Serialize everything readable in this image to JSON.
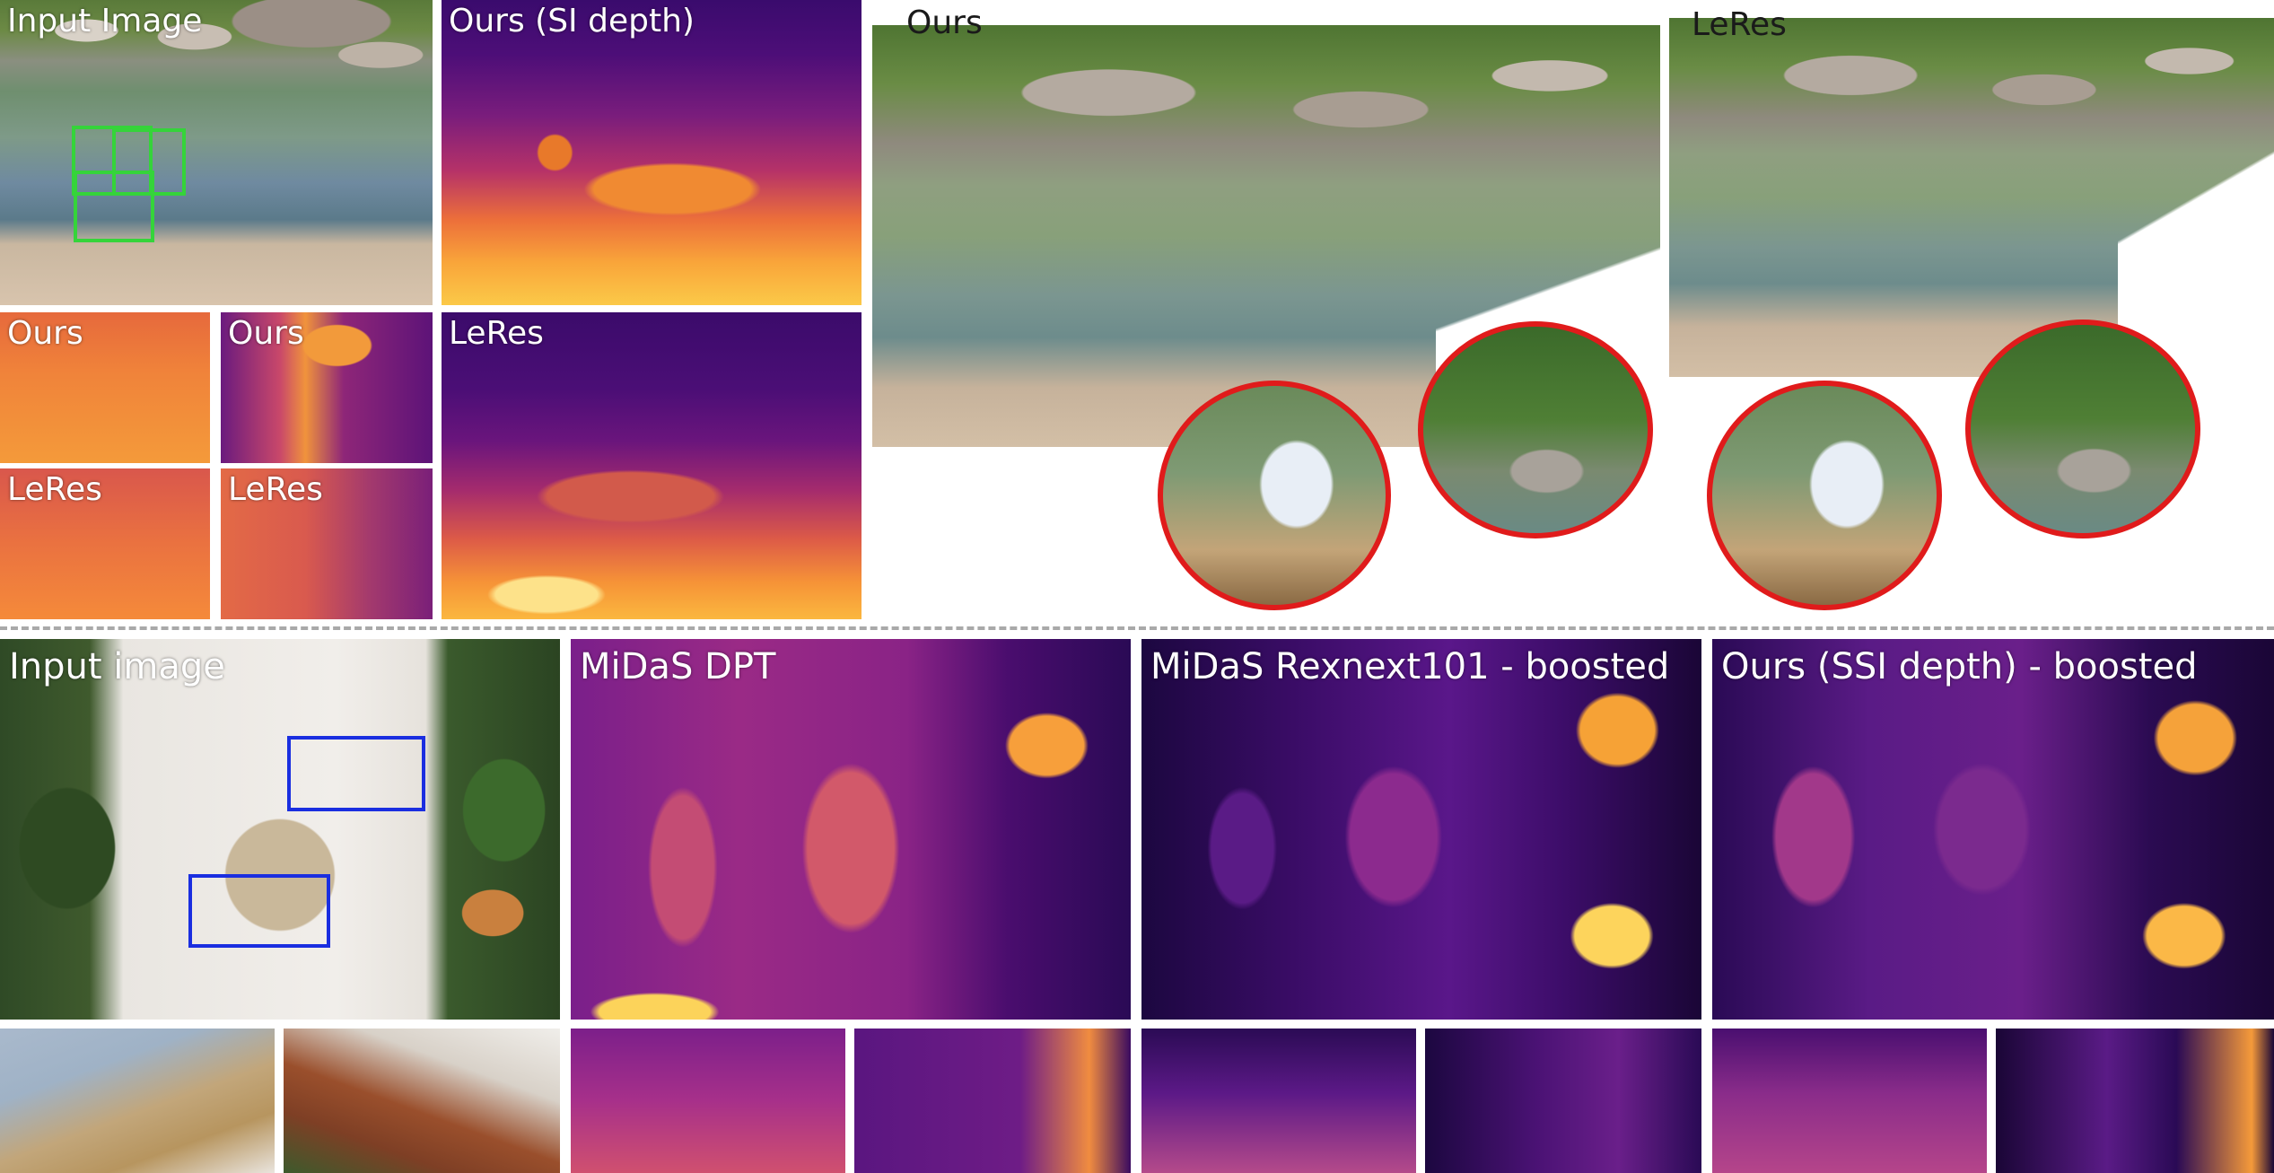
{
  "top": {
    "input": {
      "label": "Input Image"
    },
    "si_depth": {
      "label": "Ours (SI depth)"
    },
    "crops": {
      "ours_1": "Ours",
      "ours_2": "Ours",
      "leres_1": "LeRes",
      "leres_2": "LeRes"
    },
    "leres_depth": {
      "label": "LeRes"
    },
    "point_cloud_ours": {
      "label": "Ours"
    },
    "point_cloud_leres": {
      "label": "LeRes"
    }
  },
  "bottom": {
    "input": {
      "label": "Input image"
    },
    "midas_dpt": {
      "label": "MiDaS DPT"
    },
    "midas_rexnext": {
      "label": "MiDaS Rexnext101 - boosted"
    },
    "ours_ssi": {
      "label": "Ours (SSI depth) - boosted"
    }
  },
  "colors": {
    "highlight_green": "#35d43a",
    "highlight_blue": "#1a2ee0",
    "zoom_ring_red": "#e01b1b",
    "separator_gray": "#a9a9a9"
  }
}
